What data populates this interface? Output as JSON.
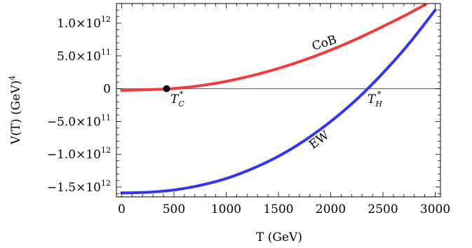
{
  "chart_data": {
    "type": "line",
    "title": "",
    "xlabel": "T (GeV)",
    "ylabel": "V(T) (GeV)",
    "ylabel_superscript": "4",
    "xlim": [
      -50,
      3050
    ],
    "ylim": [
      -1650000000000.0,
      1300000000000.0
    ],
    "x_ticks": [
      0,
      500,
      1000,
      1500,
      2000,
      2500,
      3000
    ],
    "x_tick_labels": [
      "0",
      "500",
      "1000",
      "1500",
      "2000",
      "2500",
      "3000"
    ],
    "y_ticks": [
      -1500000000000.0,
      -1000000000000.0,
      -500000000000.0,
      0,
      500000000000.0,
      1000000000000.0
    ],
    "y_tick_labels": [
      {
        "mantissa": "−1.5×10",
        "exp": "12"
      },
      {
        "mantissa": "−1.0×10",
        "exp": "12"
      },
      {
        "mantissa": "−5.0×10",
        "exp": "11"
      },
      {
        "mantissa": "0",
        "exp": ""
      },
      {
        "mantissa": "5.0×10",
        "exp": "11"
      },
      {
        "mantissa": "1.0×10",
        "exp": "12"
      }
    ],
    "grid": false,
    "zero_line": true,
    "series": [
      {
        "name": "CoB",
        "color": "#f03c3c",
        "x": [
          0,
          250,
          500,
          750,
          1000,
          1250,
          1500,
          1750,
          2000,
          2250,
          2500,
          2750,
          3000
        ],
        "y": [
          -25000000000.0,
          -15000000000.0,
          3000000000.0,
          46000000000.0,
          112000000000.0,
          200000000000.0,
          310000000000.0,
          440000000000.0,
          590000000000.0,
          760000000000.0,
          950000000000.0,
          1150000000000.0,
          1370000000000.0
        ]
      },
      {
        "name": "EW",
        "color": "#3535ee",
        "x": [
          0,
          250,
          500,
          750,
          1000,
          1250,
          1500,
          1750,
          2000,
          2250,
          2500,
          2750,
          3000
        ],
        "y": [
          -1590000000000.0,
          -1580000000000.0,
          -1545000000000.0,
          -1475000000000.0,
          -1370000000000.0,
          -1220000000000.0,
          -1030000000000.0,
          -790000000000.0,
          -500000000000.0,
          -160000000000.0,
          240000000000.0,
          690000000000.0,
          1200000000000.0
        ]
      }
    ],
    "points": [
      {
        "name": "T",
        "sub": "C",
        "sup": "*",
        "x": 430,
        "y": 0
      },
      {
        "name": "T",
        "sub": "H",
        "sup": "*",
        "x": 2340,
        "y": 0
      }
    ]
  }
}
